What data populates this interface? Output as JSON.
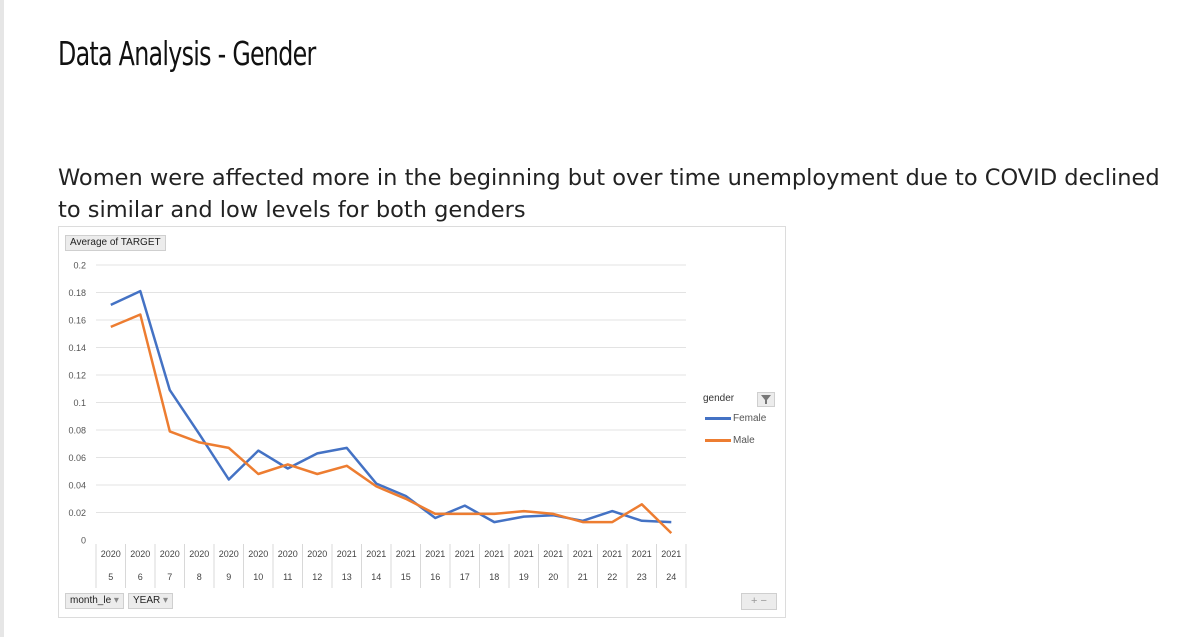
{
  "slide": {
    "title": "Data Analysis - Gender",
    "subtitle": "Women were affected more in the beginning but over time unemployment due to COVID declined to similar and low levels for both genders"
  },
  "pivot": {
    "value_field": "Average of TARGET",
    "axis_field_1": "month_le",
    "axis_field_2": "YEAR",
    "legend_field": "gender",
    "zoom_controls": "+ −"
  },
  "chart_data": {
    "type": "line",
    "title": "",
    "xlabel": "",
    "ylabel": "",
    "ylim": [
      0,
      0.2
    ],
    "y_ticks": [
      "0",
      "0.02",
      "0.04",
      "0.06",
      "0.08",
      "0.1",
      "0.12",
      "0.14",
      "0.16",
      "0.18",
      "0.2"
    ],
    "grid": true,
    "legend_position": "right",
    "categories_year": [
      "2020",
      "2020",
      "2020",
      "2020",
      "2020",
      "2020",
      "2020",
      "2020",
      "2021",
      "2021",
      "2021",
      "2021",
      "2021",
      "2021",
      "2021",
      "2021",
      "2021",
      "2021",
      "2021",
      "2021"
    ],
    "categories_month": [
      "5",
      "6",
      "7",
      "8",
      "9",
      "10",
      "11",
      "12",
      "13",
      "14",
      "15",
      "16",
      "17",
      "18",
      "19",
      "20",
      "21",
      "22",
      "23",
      "24"
    ],
    "series": [
      {
        "name": "Female",
        "color": "#4472c4",
        "values": [
          0.171,
          0.181,
          0.109,
          0.077,
          0.044,
          0.065,
          0.052,
          0.063,
          0.067,
          0.041,
          0.032,
          0.016,
          0.025,
          0.013,
          0.017,
          0.018,
          0.014,
          0.021,
          0.014,
          0.013
        ]
      },
      {
        "name": "Male",
        "color": "#ed7d31",
        "values": [
          0.155,
          0.164,
          0.079,
          0.071,
          0.067,
          0.048,
          0.055,
          0.048,
          0.054,
          0.039,
          0.03,
          0.019,
          0.019,
          0.019,
          0.021,
          0.019,
          0.013,
          0.013,
          0.026,
          0.005
        ]
      }
    ]
  }
}
